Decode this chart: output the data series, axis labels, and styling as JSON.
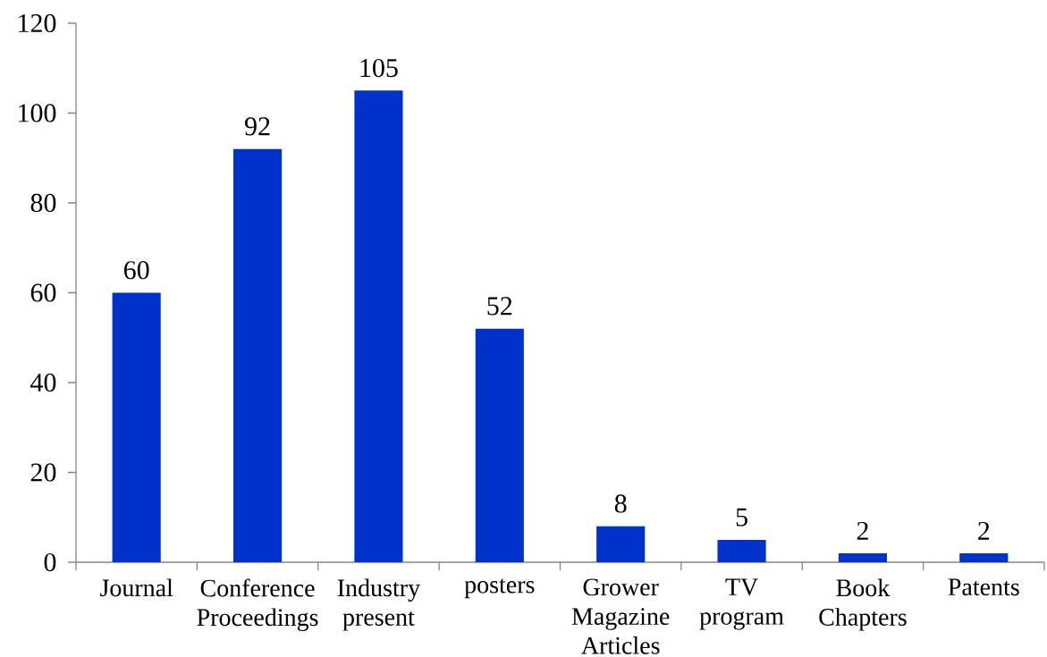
{
  "chart_data": {
    "type": "bar",
    "categories": [
      "Journal",
      "Conference Proceedings",
      "Industry present",
      "posters",
      "Grower Magazine Articles",
      "TV program",
      "Book Chapters",
      "Patents"
    ],
    "values": [
      60,
      92,
      105,
      52,
      8,
      5,
      2,
      2
    ],
    "color": "#0033cc",
    "ylim": [
      0,
      120
    ],
    "yticks": [
      0,
      20,
      40,
      60,
      80,
      100,
      120
    ],
    "data_labels": true
  }
}
